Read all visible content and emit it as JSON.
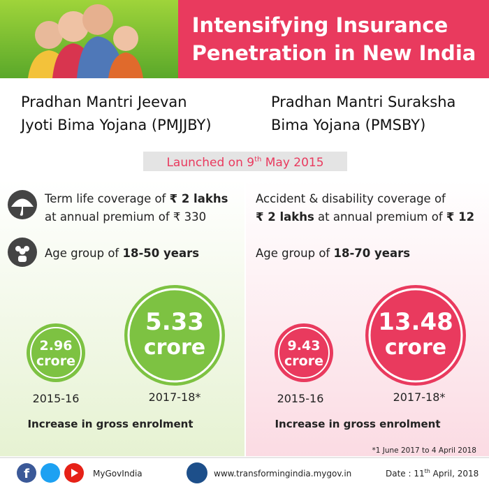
{
  "header": {
    "title_lines": [
      "Intensifying Insurance",
      "Penetration in New India"
    ]
  },
  "launched": {
    "text": "Launched on 9",
    "sup": "th",
    "rest": " May 2015"
  },
  "schemes": [
    {
      "name_lines": [
        "Pradhan Mantri Jeevan",
        "Jyoti Bima Yojana (PMJJBY)"
      ],
      "coverage": [
        "Term life coverage of ",
        "₹ 2 lakhs",
        "at annual premium of ",
        "₹ 330"
      ],
      "age": [
        "Age group of ",
        "18-50 years"
      ],
      "enrolment": [
        {
          "value": 2.96,
          "unit": "crore",
          "period": "2015-16"
        },
        {
          "value": 5.33,
          "unit": "crore",
          "period": "2017-18*"
        }
      ],
      "caption": "Increase in gross enrolment"
    },
    {
      "name_lines": [
        "Pradhan Mantri Suraksha",
        "Bima Yojana (PMSBY)"
      ],
      "coverage": [
        "Accident & disability coverage of",
        "₹ 2 lakhs",
        " at annual premium of ",
        "₹ 12"
      ],
      "age": [
        "Age group of ",
        "18-70 years"
      ],
      "enrolment": [
        {
          "value": 9.43,
          "unit": "crore",
          "period": "2015-16"
        },
        {
          "value": 13.48,
          "unit": "crore",
          "period": "2017-18*"
        }
      ],
      "caption": "Increase in gross enrolment"
    }
  ],
  "note": "*1 June 2017 to 4 April 2018",
  "footer": {
    "handle": "MyGovIndia",
    "url": "www.transformingindia.mygov.in",
    "date": {
      "text": "Date : 11",
      "sup": "th",
      "rest": " April, 2018"
    }
  }
}
